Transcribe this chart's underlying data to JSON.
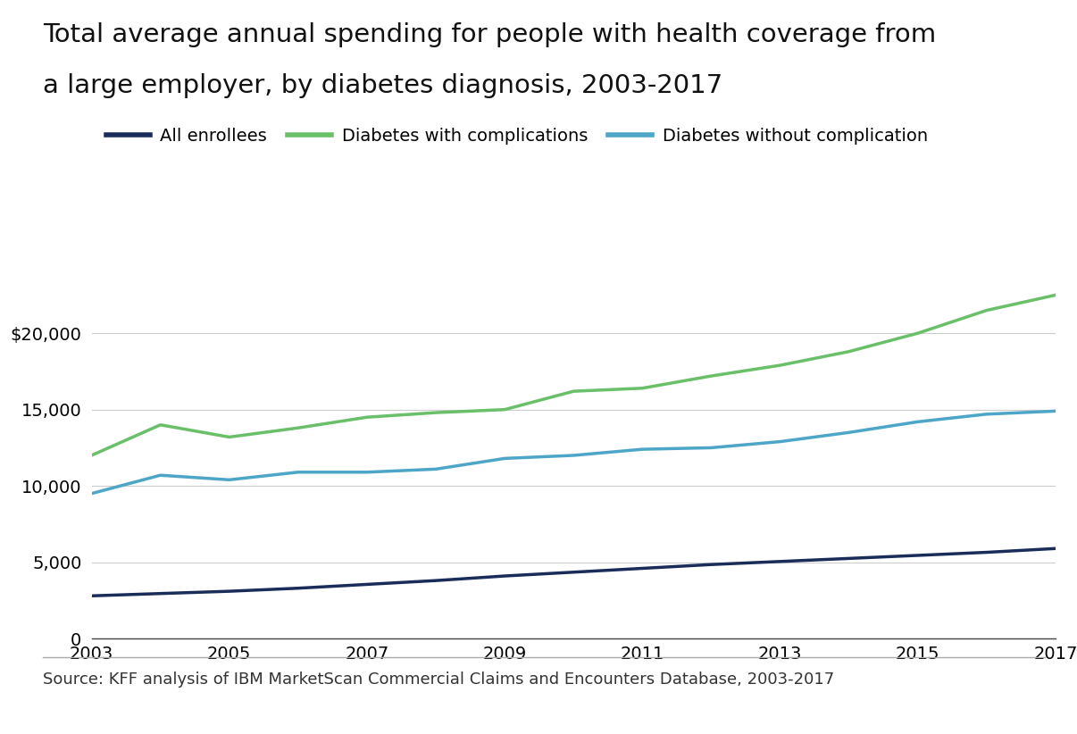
{
  "title_line1": "Total average annual spending for people with health coverage from",
  "title_line2": "a large employer, by diabetes diagnosis, 2003-2017",
  "source": "Source: KFF analysis of IBM MarketScan Commercial Claims and Encounters Database, 2003-2017",
  "years": [
    2003,
    2004,
    2005,
    2006,
    2007,
    2008,
    2009,
    2010,
    2011,
    2012,
    2013,
    2014,
    2015,
    2016,
    2017
  ],
  "all_enrollees": [
    2800,
    2950,
    3100,
    3300,
    3550,
    3800,
    4100,
    4350,
    4600,
    4850,
    5050,
    5250,
    5450,
    5650,
    5900
  ],
  "diabetes_with_comp": [
    12000,
    14000,
    13200,
    13800,
    14500,
    14800,
    15000,
    16200,
    16400,
    17200,
    17900,
    18800,
    20000,
    21500,
    22500
  ],
  "diabetes_without_comp": [
    9500,
    10700,
    10400,
    10900,
    10900,
    11100,
    11800,
    12000,
    12400,
    12500,
    12900,
    13500,
    14200,
    14700,
    14900
  ],
  "line_colors": {
    "all_enrollees": "#1a2d5a",
    "diabetes_with_comp": "#6abf69",
    "diabetes_without_comp": "#4da6c8"
  },
  "legend_labels": {
    "all_enrollees": "All enrollees",
    "diabetes_with_comp": "Diabetes with complications",
    "diabetes_without_comp": "Diabetes without complication"
  },
  "ylim": [
    0,
    25000
  ],
  "yticks": [
    0,
    5000,
    10000,
    15000,
    20000
  ],
  "ytick_labels": [
    "0",
    "5,000",
    "10,000",
    "15,000",
    "$20,000"
  ],
  "xticks": [
    2003,
    2005,
    2007,
    2009,
    2011,
    2013,
    2015,
    2017
  ],
  "background_color": "#ffffff",
  "title_fontsize": 21,
  "legend_fontsize": 14,
  "tick_fontsize": 14,
  "source_fontsize": 13,
  "line_width": 2.5
}
